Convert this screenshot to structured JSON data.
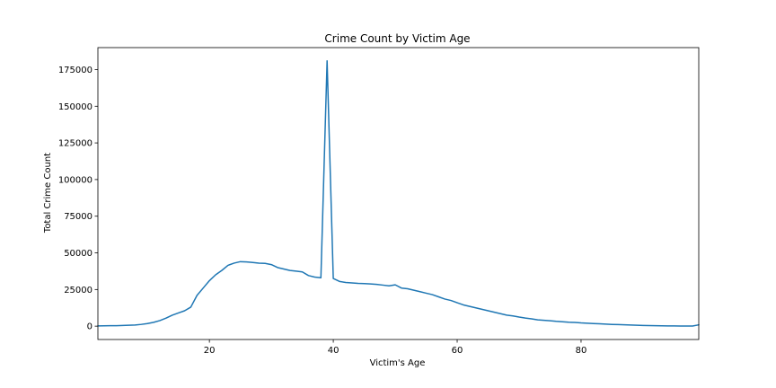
{
  "chart_data": {
    "type": "line",
    "title": "Crime Count by Victim Age",
    "xlabel": "Victim's Age",
    "ylabel": "Total Crime Count",
    "xlim": [
      2,
      99
    ],
    "ylim": [
      -9100,
      190000
    ],
    "x_ticks": [
      20,
      40,
      60,
      80
    ],
    "x_tick_labels": [
      "20",
      "40",
      "60",
      "80"
    ],
    "y_ticks": [
      0,
      25000,
      50000,
      75000,
      100000,
      125000,
      150000,
      175000
    ],
    "y_tick_labels": [
      "0",
      "25000",
      "50000",
      "75000",
      "100000",
      "125000",
      "150000",
      "175000"
    ],
    "grid": false,
    "legend": "none",
    "line_color": "#1f77b4",
    "series": [
      {
        "x": [
          2,
          3,
          4,
          5,
          6,
          7,
          8,
          9,
          10,
          11,
          12,
          13,
          14,
          15,
          16,
          17,
          18,
          19,
          20,
          21,
          22,
          23,
          24,
          25,
          26,
          27,
          28,
          29,
          30,
          31,
          32,
          33,
          34,
          35,
          36,
          37,
          38,
          39,
          40,
          41,
          42,
          43,
          44,
          45,
          46,
          47,
          48,
          49,
          50,
          51,
          52,
          53,
          54,
          55,
          56,
          57,
          58,
          59,
          60,
          61,
          62,
          63,
          64,
          65,
          66,
          67,
          68,
          69,
          70,
          71,
          72,
          73,
          74,
          75,
          76,
          77,
          78,
          79,
          80,
          81,
          82,
          83,
          84,
          85,
          86,
          87,
          88,
          89,
          90,
          91,
          92,
          93,
          94,
          95,
          96,
          97,
          98,
          99
        ],
        "values": [
          200,
          250,
          300,
          350,
          450,
          600,
          800,
          1200,
          1800,
          2600,
          3800,
          5500,
          7500,
          9000,
          10500,
          13000,
          21000,
          26000,
          31000,
          35000,
          38000,
          41500,
          43000,
          44000,
          43800,
          43400,
          43000,
          42800,
          42000,
          40000,
          39000,
          38000,
          37500,
          37000,
          34500,
          33500,
          33000,
          181000,
          32500,
          30500,
          29800,
          29500,
          29200,
          29000,
          28800,
          28500,
          28000,
          27500,
          28200,
          26000,
          25500,
          24500,
          23500,
          22500,
          21500,
          20000,
          18500,
          17500,
          16000,
          14500,
          13500,
          12500,
          11500,
          10500,
          9500,
          8500,
          7500,
          7000,
          6200,
          5500,
          5000,
          4300,
          4000,
          3700,
          3300,
          3000,
          2700,
          2500,
          2200,
          2000,
          1800,
          1600,
          1400,
          1200,
          1050,
          900,
          750,
          600,
          500,
          400,
          300,
          250,
          200,
          150,
          120,
          100,
          100,
          900
        ]
      }
    ]
  }
}
